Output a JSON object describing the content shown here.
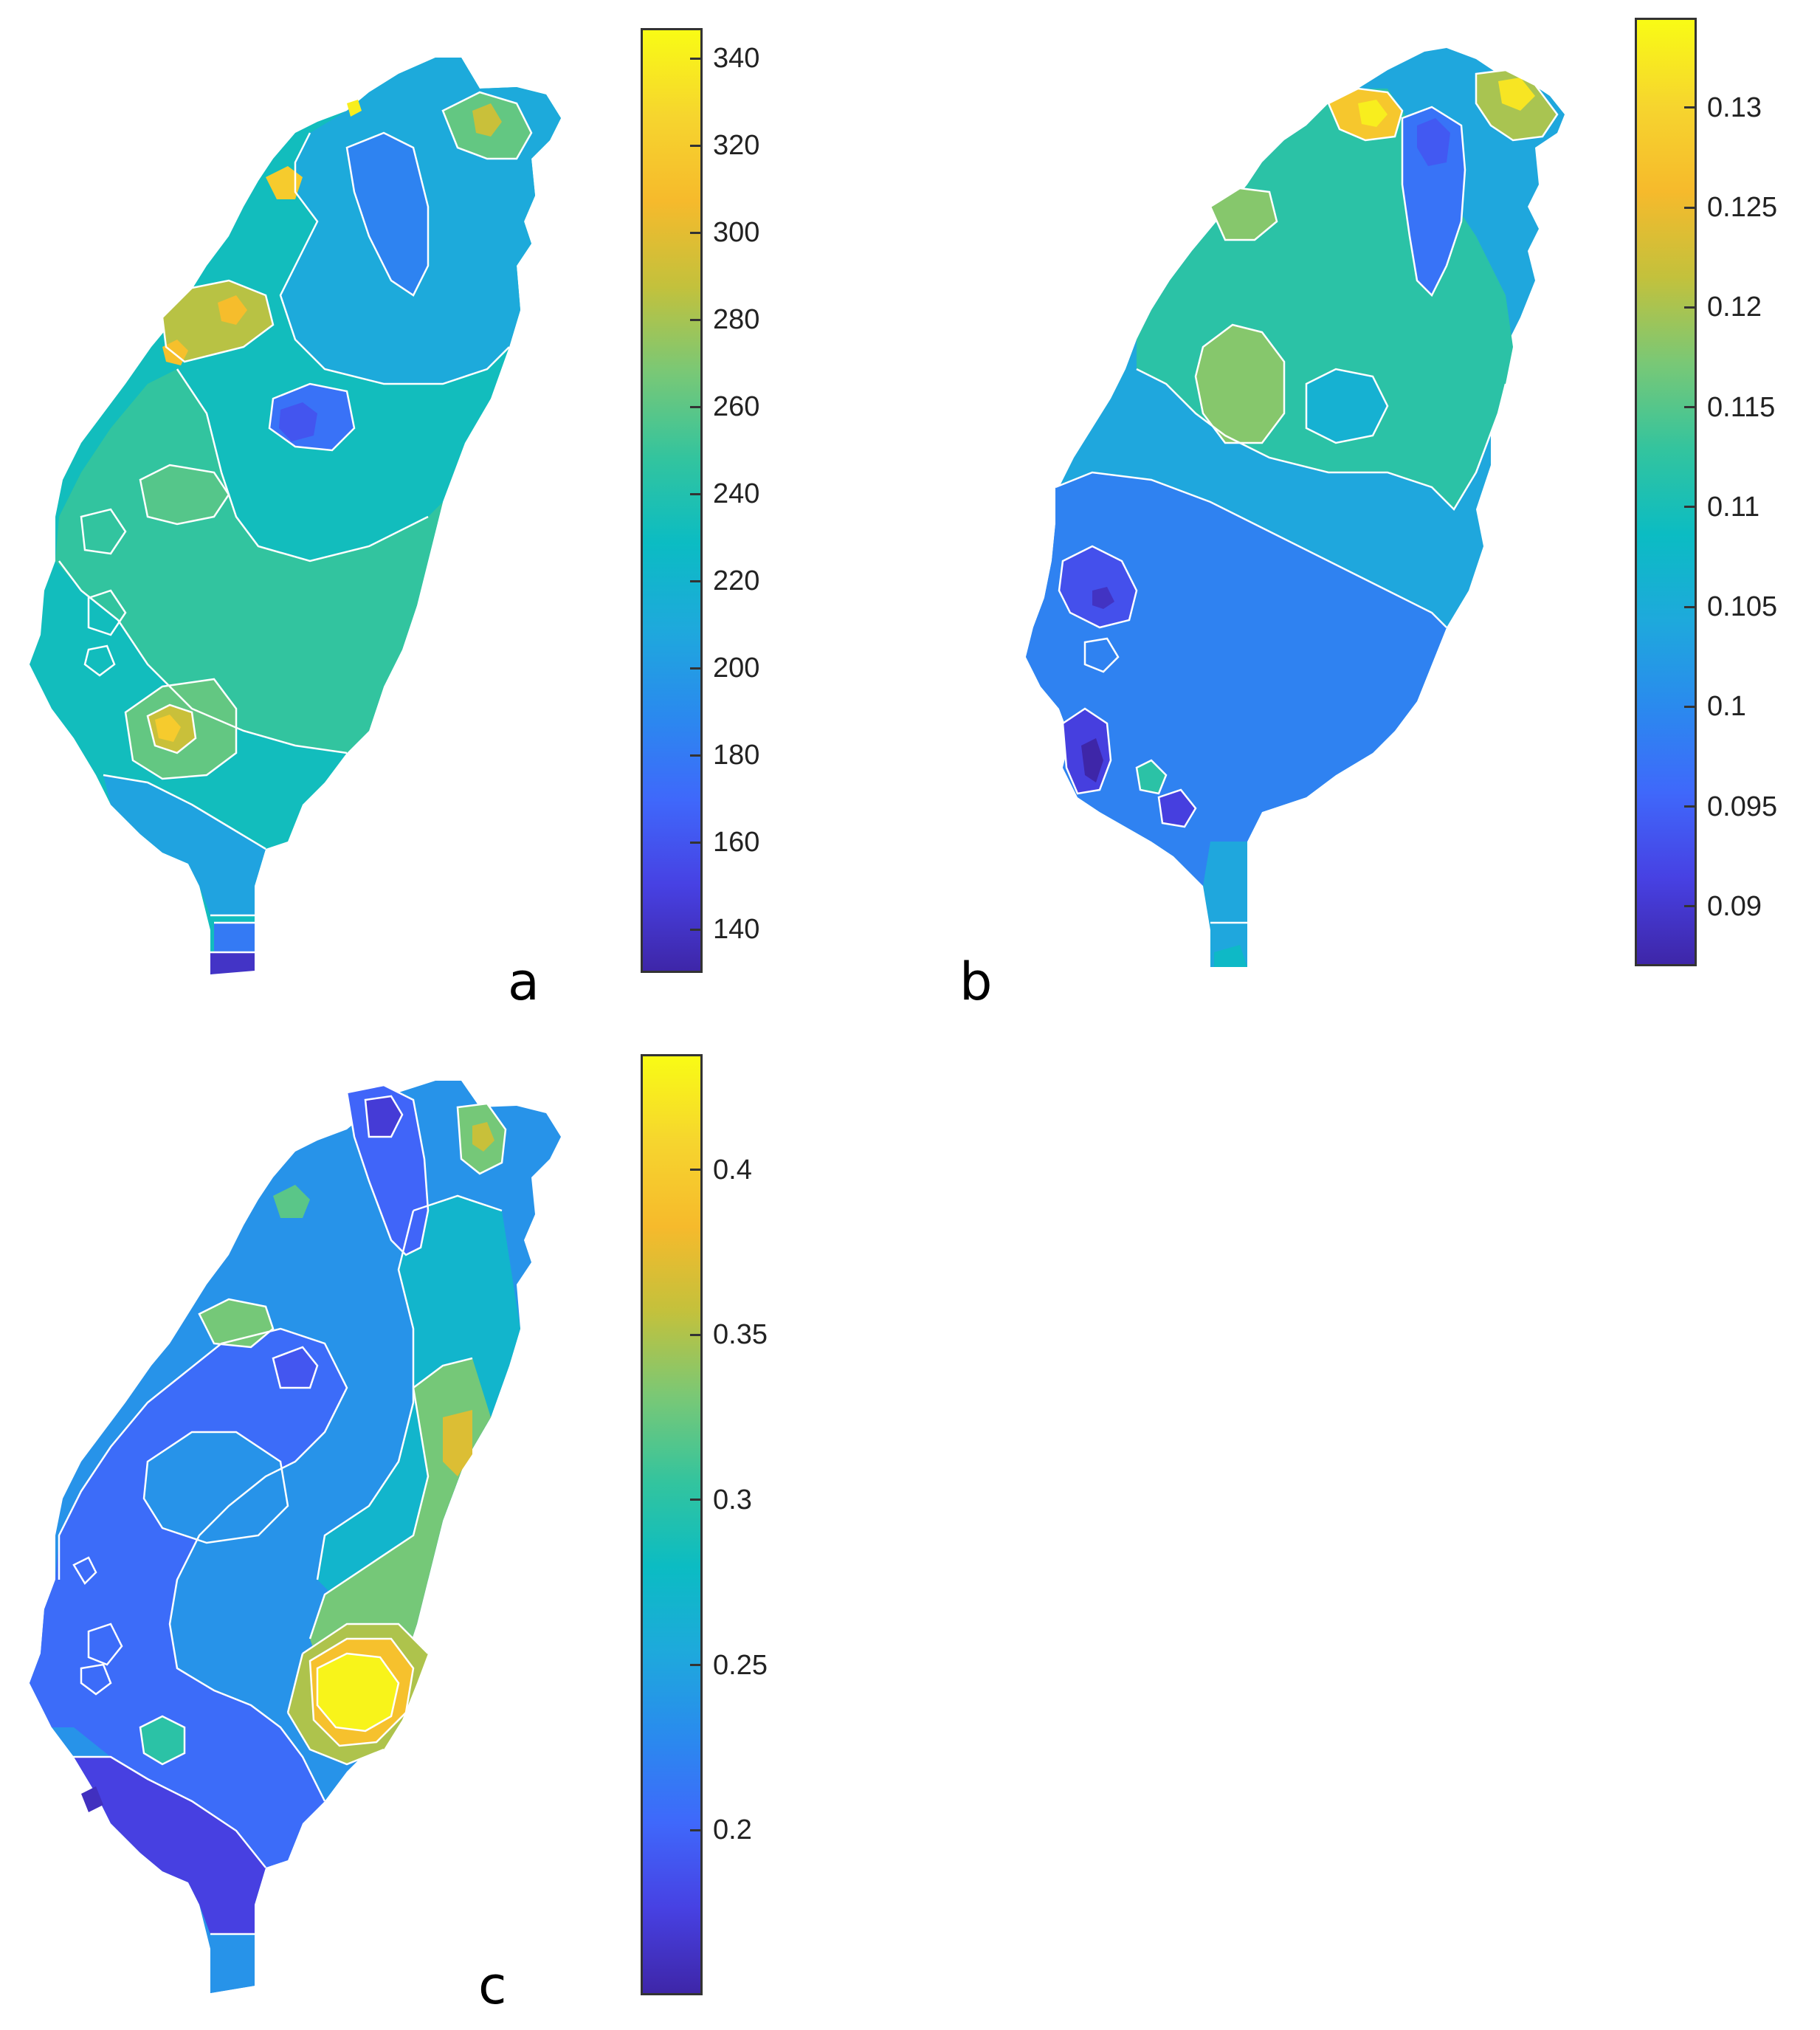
{
  "colormap": [
    "#3e26a8",
    "#4741e3",
    "#3f68fb",
    "#2a8aee",
    "#1ea9dc",
    "#0bbcc3",
    "#33c49e",
    "#79c876",
    "#c3c13c",
    "#f6ba2c",
    "#f6d52e",
    "#f9fb15"
  ],
  "contour_color": "#ffffff",
  "panels": [
    {
      "label": "a",
      "colorbar": {
        "min": 130,
        "max": 347,
        "ticks": [
          "140",
          "160",
          "180",
          "200",
          "220",
          "240",
          "260",
          "280",
          "300",
          "320",
          "340"
        ]
      },
      "map": {
        "base_value": 232,
        "regions": [
          {
            "level": 248,
            "desc": "west plain"
          },
          {
            "level": 210,
            "desc": "north-east mountains"
          },
          {
            "level": 185,
            "desc": "north central low"
          },
          {
            "level": 165,
            "desc": "central hole"
          },
          {
            "level": 250,
            "desc": "central-west hill"
          },
          {
            "level": 285,
            "desc": "north-west hotspot"
          },
          {
            "level": 310,
            "desc": "north-west peak"
          },
          {
            "level": 340,
            "desc": "north tip peak"
          },
          {
            "level": 270,
            "desc": "south-west hotspot"
          },
          {
            "level": 320,
            "desc": "south-west peak"
          },
          {
            "level": 200,
            "desc": "south low"
          },
          {
            "level": 150,
            "desc": "southern tip"
          }
        ]
      }
    },
    {
      "label": "b",
      "colorbar": {
        "min": 0.087,
        "max": 0.1345,
        "ticks": [
          "0.09",
          "0.095",
          "0.1",
          "0.105",
          "0.11",
          "0.115",
          "0.12",
          "0.125",
          "0.13"
        ]
      },
      "map": {
        "base_value": 0.104,
        "regions": [
          {
            "level": 0.112,
            "desc": "north-central plain"
          },
          {
            "level": 0.117,
            "desc": "north-west hotspot"
          },
          {
            "level": 0.098,
            "desc": "south-west low"
          },
          {
            "level": 0.092,
            "desc": "south-west hole"
          },
          {
            "level": 0.097,
            "desc": "north-east low"
          },
          {
            "level": 0.128,
            "desc": "north tip peak"
          },
          {
            "level": 0.133,
            "desc": "north-east peak"
          }
        ]
      }
    },
    {
      "label": "c",
      "colorbar": {
        "min": 0.15,
        "max": 0.435,
        "ticks": [
          "0.2",
          "0.25",
          "0.3",
          "0.35",
          "0.4"
        ]
      },
      "map": {
        "base_value": 0.235,
        "regions": [
          {
            "level": 0.205,
            "desc": "west plain"
          },
          {
            "level": 0.175,
            "desc": "south-west low"
          },
          {
            "level": 0.27,
            "desc": "east coast"
          },
          {
            "level": 0.33,
            "desc": "east ridge"
          },
          {
            "level": 0.43,
            "desc": "south-east peak"
          },
          {
            "level": 0.37,
            "desc": "east hotspot"
          },
          {
            "level": 0.2,
            "desc": "north-east low"
          },
          {
            "level": 0.33,
            "desc": "north-west hotspot"
          }
        ]
      }
    }
  ]
}
